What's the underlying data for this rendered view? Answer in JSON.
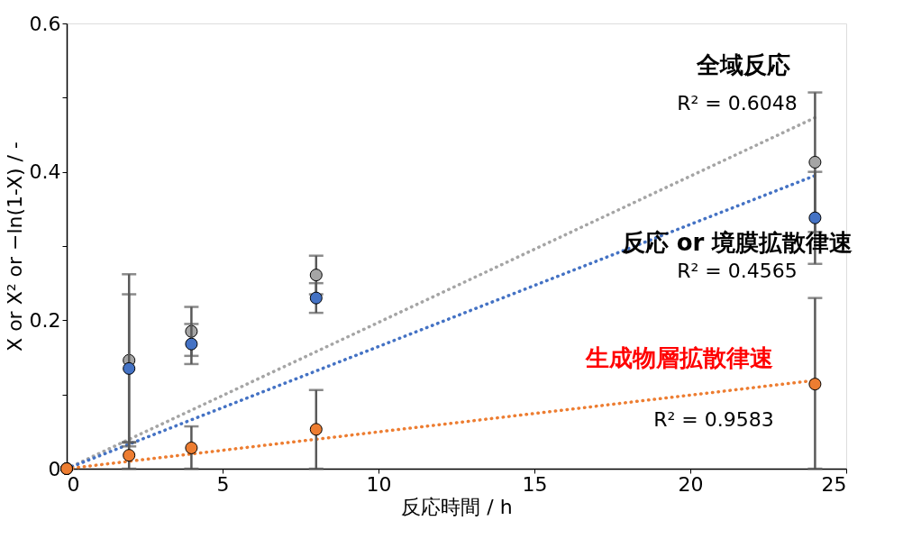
{
  "chart_data": {
    "type": "scatter",
    "xlabel": "反応時間 / h",
    "ylabel": "X or X² or −ln(1-X) / -",
    "xlim": [
      0,
      25
    ],
    "xticks": [
      0,
      5,
      10,
      15,
      20,
      25
    ],
    "ylim": [
      0,
      0.6
    ],
    "yticks": [
      0,
      {
        "value": 0.1,
        "label": null
      },
      0.2,
      {
        "value": 0.3,
        "label": null
      },
      0.4,
      {
        "value": 0.5,
        "label": null
      },
      0.6
    ],
    "grid": false,
    "series": [
      {
        "type": "line",
        "color": "#a5a5a5",
        "x": [
          0,
          24
        ],
        "values": [
          0,
          0.473
        ],
        "line_style": "dotted",
        "marker": "none"
      },
      {
        "type": "line",
        "color": "#4472c4",
        "x": [
          0,
          24
        ],
        "values": [
          0,
          0.395
        ],
        "line_style": "dotted",
        "marker": "none"
      },
      {
        "type": "line",
        "color": "#ed7d31",
        "x": [
          0,
          24
        ],
        "values": [
          0,
          0.119
        ],
        "line_style": "dotted",
        "marker": "none"
      },
      {
        "color": "#a5a5a5",
        "x": [
          0,
          2,
          4,
          8,
          24
        ],
        "values": [
          0,
          0.146,
          0.185,
          0.261,
          0.413
        ],
        "errors": [
          null,
          0.116,
          0.033,
          0.026,
          0.094
        ],
        "marker": "circle"
      },
      {
        "color": "#4472c4",
        "x": [
          0,
          2,
          4,
          8,
          24
        ],
        "values": [
          0,
          0.135,
          0.168,
          0.23,
          0.338
        ],
        "errors": [
          null,
          0.1,
          0.027,
          0.02,
          0.062
        ],
        "marker": "circle"
      },
      {
        "color": "#ed7d31",
        "x": [
          0,
          2,
          4,
          8,
          24
        ],
        "values": [
          0,
          0.018,
          0.028,
          0.053,
          0.114
        ],
        "errors": [
          null,
          0.018,
          [
            0.028,
            0.029
          ],
          0.053,
          [
            0.114,
            0.116
          ]
        ],
        "marker": "circle"
      }
    ],
    "annotations": [
      "全域反応",
      "R² = 0.6048",
      "反応 or 境膜拡散律速",
      "R² = 0.4565",
      "生成物層拡散律速",
      "R² = 0.9583"
    ]
  }
}
